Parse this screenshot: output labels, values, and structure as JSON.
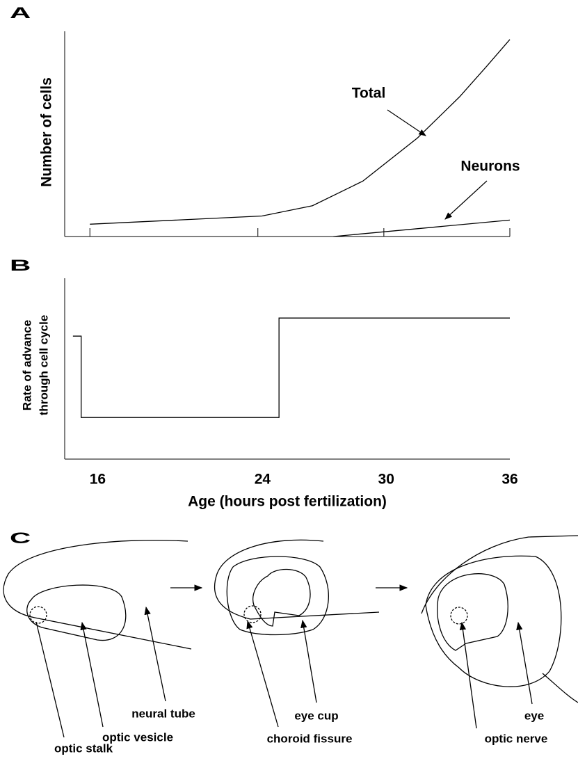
{
  "chart_data": [
    {
      "type": "line",
      "label": "A",
      "y_label": "Number of cells",
      "xlim": [
        14.8,
        36
      ],
      "xticks": [
        16,
        24,
        30,
        36
      ],
      "tick_labels": false,
      "ylim": [
        0,
        100
      ],
      "series": [
        {
          "name": "Total",
          "color": "#000000",
          "x": [
            16,
            24.2,
            26.6,
            29,
            31.6,
            33.6,
            34.9,
            36
          ],
          "values": [
            6,
            10,
            15,
            27,
            48,
            68,
            83,
            96
          ]
        },
        {
          "name": "Neurons",
          "color": "#000000",
          "x": [
            27.6,
            36
          ],
          "values": [
            0,
            8
          ]
        }
      ]
    },
    {
      "type": "line",
      "label": "B",
      "y_label": [
        "Rate of advance",
        "through cell cycle"
      ],
      "x_label": "Age (hours post fertilization)",
      "xlim": [
        14.4,
        36
      ],
      "xticks": [
        16,
        24,
        30,
        36
      ],
      "tick_marks": false,
      "ylim": [
        0,
        100
      ],
      "series": [
        {
          "color": "#000000",
          "x": [
            14.8,
            15.2,
            15.2,
            24.8,
            24.8,
            36
          ],
          "values": [
            68,
            68,
            23,
            23,
            78,
            78
          ]
        }
      ]
    }
  ],
  "diagram": {
    "label": "C",
    "stages": [
      {
        "labels": [
          "neural tube",
          "optic vesicle",
          "optic stalk"
        ]
      },
      {
        "labels": [
          "eye cup",
          "choroid fissure"
        ]
      },
      {
        "labels": [
          "eye",
          "optic nerve"
        ]
      }
    ]
  }
}
